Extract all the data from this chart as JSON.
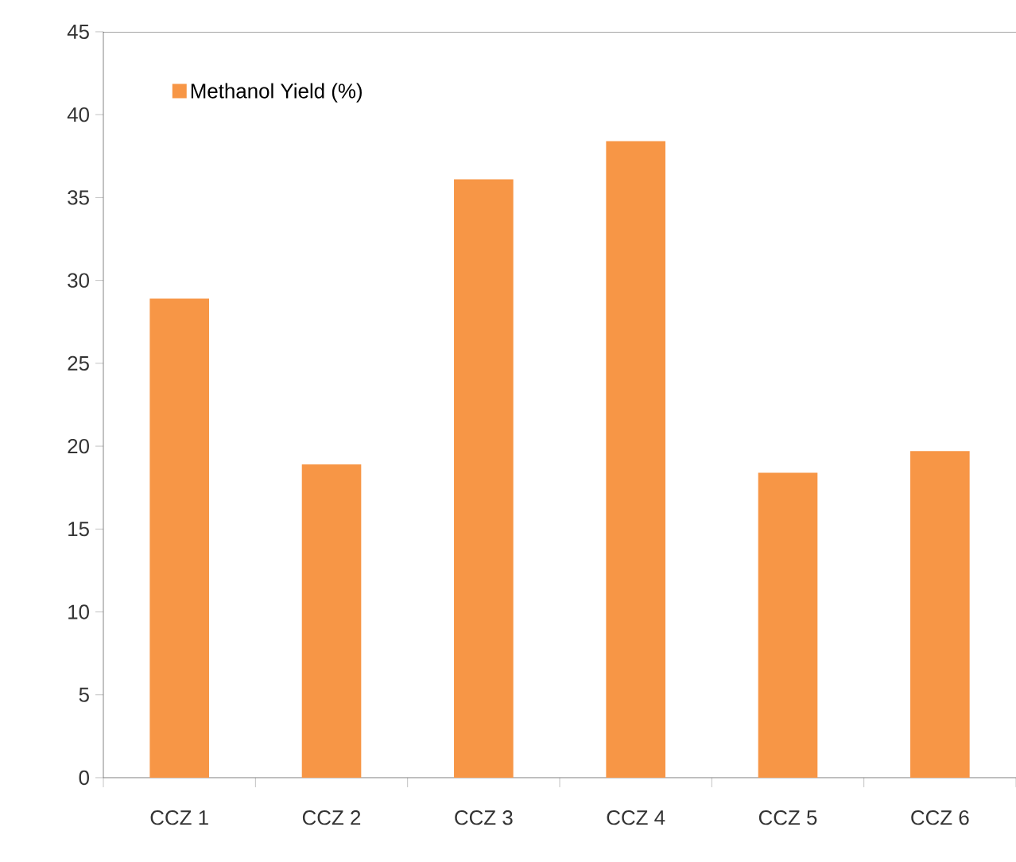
{
  "chart_data": {
    "type": "bar",
    "categories": [
      "CCZ 1",
      "CCZ 2",
      "CCZ 3",
      "CCZ 4",
      "CCZ 5",
      "CCZ 6"
    ],
    "series": [
      {
        "name": "Methanol Yield (%)",
        "color": "#f79646",
        "values": [
          28.9,
          18.9,
          36.1,
          38.4,
          18.4,
          19.7
        ]
      }
    ],
    "ylim": [
      0,
      45
    ],
    "yticks": [
      0,
      5,
      10,
      15,
      20,
      25,
      30,
      35,
      40,
      45
    ],
    "grid": false,
    "legend": "top left"
  }
}
